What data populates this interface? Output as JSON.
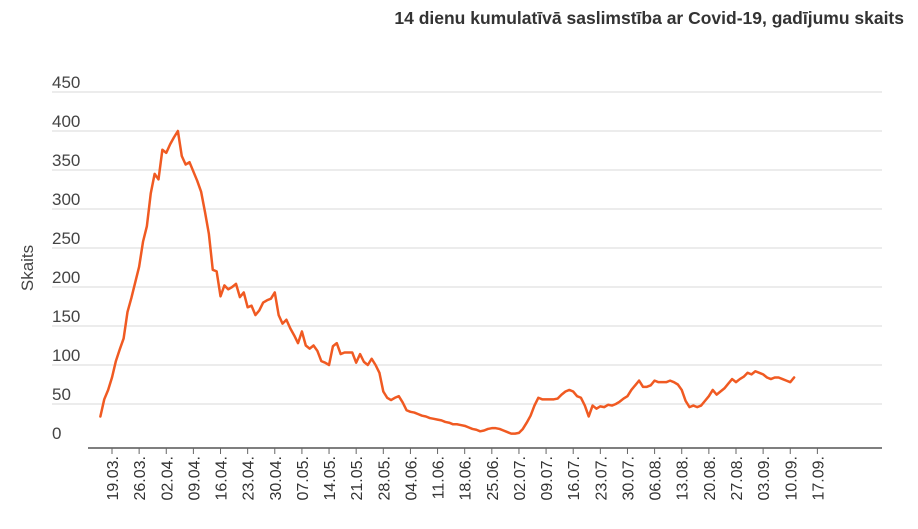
{
  "chart_data": {
    "type": "line",
    "title": "14 dienu kumulatīvā saslimstība ar Covid-19, gadījumu skaits",
    "ylabel": "Skaits",
    "xlabel": "",
    "ylim": [
      0,
      450
    ],
    "yticks": [
      0,
      50,
      100,
      150,
      200,
      250,
      300,
      350,
      400,
      450
    ],
    "grid": true,
    "legend": "none",
    "line_color": "#f05a22",
    "x_tick_labels": [
      "19.03.",
      "26.03.",
      "02.04.",
      "09.04.",
      "16.04.",
      "23.04.",
      "30.04.",
      "07.05.",
      "14.05.",
      "21.05.",
      "28.05.",
      "04.06.",
      "11.06.",
      "18.06.",
      "25.06.",
      "02.07.",
      "09.07.",
      "16.07.",
      "23.07.",
      "30.07.",
      "06.08.",
      "13.08.",
      "20.08.",
      "27.08.",
      "03.09.",
      "10.09.",
      "17.09."
    ],
    "x_start": "16.03.",
    "series": [
      {
        "values": [
          34,
          56,
          68,
          84,
          105,
          120,
          134,
          168,
          186,
          206,
          226,
          258,
          278,
          320,
          345,
          338,
          376,
          372,
          383,
          392,
          400,
          368,
          357,
          360,
          348,
          336,
          322,
          296,
          268,
          222,
          220,
          188,
          202,
          197,
          200,
          204,
          187,
          193,
          174,
          176,
          164,
          170,
          180,
          183,
          185,
          193,
          164,
          153,
          158,
          147,
          138,
          128,
          143,
          125,
          121,
          125,
          118,
          105,
          103,
          100,
          124,
          128,
          114,
          116,
          116,
          116,
          103,
          114,
          104,
          100,
          108,
          100,
          90,
          66,
          58,
          55,
          58,
          60,
          52,
          42,
          40,
          39,
          37,
          35,
          34,
          32,
          31,
          30,
          29,
          27,
          26,
          24,
          24,
          23,
          22,
          20,
          18,
          17,
          15,
          16,
          18,
          19,
          19,
          18,
          16,
          14,
          12,
          12,
          13,
          18,
          26,
          35,
          48,
          58,
          56,
          56,
          56,
          56,
          57,
          62,
          66,
          68,
          66,
          60,
          58,
          48,
          34,
          48,
          44,
          47,
          46,
          49,
          48,
          50,
          53,
          57,
          60,
          68,
          74,
          80,
          72,
          72,
          74,
          80,
          78,
          78,
          78,
          80,
          78,
          75,
          68,
          54,
          46,
          48,
          46,
          48,
          54,
          60,
          68,
          62,
          66,
          70,
          76,
          82,
          78,
          82,
          85,
          90,
          88,
          92,
          90,
          88,
          84,
          82,
          84,
          84,
          82,
          80,
          78,
          84
        ]
      }
    ]
  }
}
